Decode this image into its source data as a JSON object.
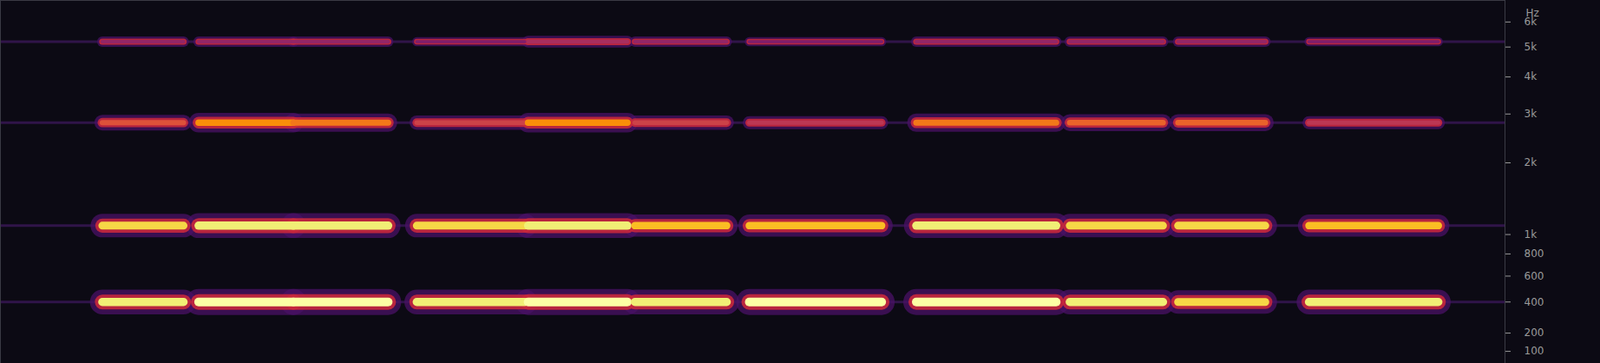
{
  "chart_data": {
    "type": "spectrogram",
    "ylabel": "Hz",
    "xlim": [
      0,
      100
    ],
    "ylim": [
      40,
      7000
    ],
    "yticks": [
      {
        "value": 6000,
        "label": "6k"
      },
      {
        "value": 5000,
        "label": "5k"
      },
      {
        "value": 4000,
        "label": "4k"
      },
      {
        "value": 3000,
        "label": "3k"
      },
      {
        "value": 2000,
        "label": "2k"
      },
      {
        "value": 1000,
        "label": "1k"
      },
      800,
      600,
      400,
      200,
      100
    ],
    "tick_labels": "y",
    "zlim": [
      0,
      1
    ],
    "notes": [
      {
        "start": 6.8,
        "end": 12.2
      },
      {
        "start": 13.2,
        "end": 19.5
      },
      {
        "start": 19.5,
        "end": 25.8
      },
      {
        "start": 27.7,
        "end": 34.9
      },
      {
        "start": 35.1,
        "end": 41.7
      },
      {
        "start": 42.2,
        "end": 48.3
      },
      {
        "start": 49.8,
        "end": 58.6
      },
      {
        "start": 60.9,
        "end": 70.2
      },
      {
        "start": 71.1,
        "end": 77.3
      },
      {
        "start": 78.3,
        "end": 84.1
      },
      {
        "start": 87.0,
        "end": 95.6
      }
    ],
    "bands": [
      {
        "frequency": 400,
        "levels": [
          0.95,
          1,
          1,
          0.95,
          1,
          0.95,
          1,
          1,
          0.95,
          0.9,
          0.95
        ]
      },
      {
        "frequency": 1100,
        "levels": [
          0.9,
          0.95,
          0.95,
          0.9,
          0.95,
          0.85,
          0.85,
          0.95,
          0.9,
          0.9,
          0.85
        ]
      },
      {
        "frequency": 2800,
        "levels": [
          0.6,
          0.75,
          0.7,
          0.55,
          0.75,
          0.55,
          0.5,
          0.7,
          0.65,
          0.65,
          0.5
        ]
      },
      {
        "frequency": 5200,
        "levels": [
          0.4,
          0.4,
          0.4,
          0.35,
          0.45,
          0.4,
          0.35,
          0.4,
          0.4,
          0.4,
          0.35
        ]
      }
    ]
  }
}
